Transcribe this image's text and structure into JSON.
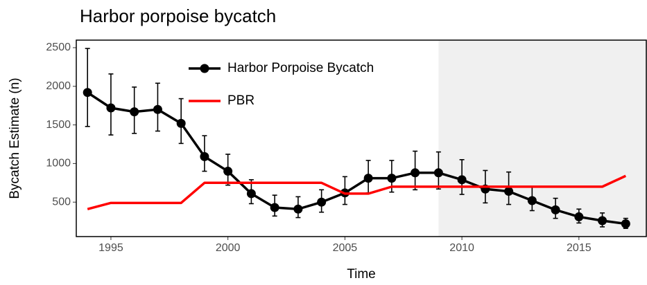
{
  "chart_data": {
    "type": "line",
    "title": "Harbor porpoise bycatch",
    "x_label": "Time",
    "y_label": "Bycatch Estimate (n)",
    "x": [
      1994,
      1995,
      1996,
      1997,
      1998,
      1999,
      2000,
      2001,
      2002,
      2003,
      2004,
      2005,
      2006,
      2007,
      2008,
      2009,
      2010,
      2011,
      2012,
      2013,
      2014,
      2015,
      2016,
      2017
    ],
    "series": [
      {
        "name": "Harbor Porpoise Bycatch",
        "color": "#000000",
        "markers": true,
        "values": [
          1920,
          1720,
          1670,
          1700,
          1520,
          1090,
          900,
          610,
          430,
          410,
          500,
          620,
          810,
          810,
          880,
          880,
          790,
          670,
          640,
          520,
          400,
          310,
          260,
          220
        ],
        "lower": [
          1480,
          1370,
          1390,
          1420,
          1260,
          900,
          720,
          480,
          320,
          300,
          370,
          470,
          620,
          630,
          660,
          670,
          600,
          490,
          470,
          390,
          290,
          230,
          180,
          160
        ],
        "upper": [
          2490,
          2160,
          1990,
          2040,
          1840,
          1360,
          1120,
          790,
          590,
          570,
          660,
          830,
          1040,
          1040,
          1160,
          1150,
          1050,
          910,
          890,
          700,
          550,
          410,
          360,
          290
        ]
      },
      {
        "name": "PBR",
        "color": "#ff0000",
        "markers": false,
        "values": [
          410,
          490,
          490,
          490,
          490,
          750,
          750,
          750,
          750,
          750,
          750,
          610,
          610,
          700,
          700,
          700,
          700,
          700,
          700,
          700,
          700,
          700,
          700,
          840
        ]
      }
    ],
    "highlight_from": 2009,
    "highlight_color": "#f0f0f0",
    "xlim": [
      1993.52,
      2017.88
    ],
    "ylim": [
      54,
      2598
    ],
    "xticks": [
      1995,
      2000,
      2005,
      2010,
      2015
    ],
    "yticks": [
      500,
      1000,
      1500,
      2000,
      2500
    ],
    "legend": "top-left"
  }
}
